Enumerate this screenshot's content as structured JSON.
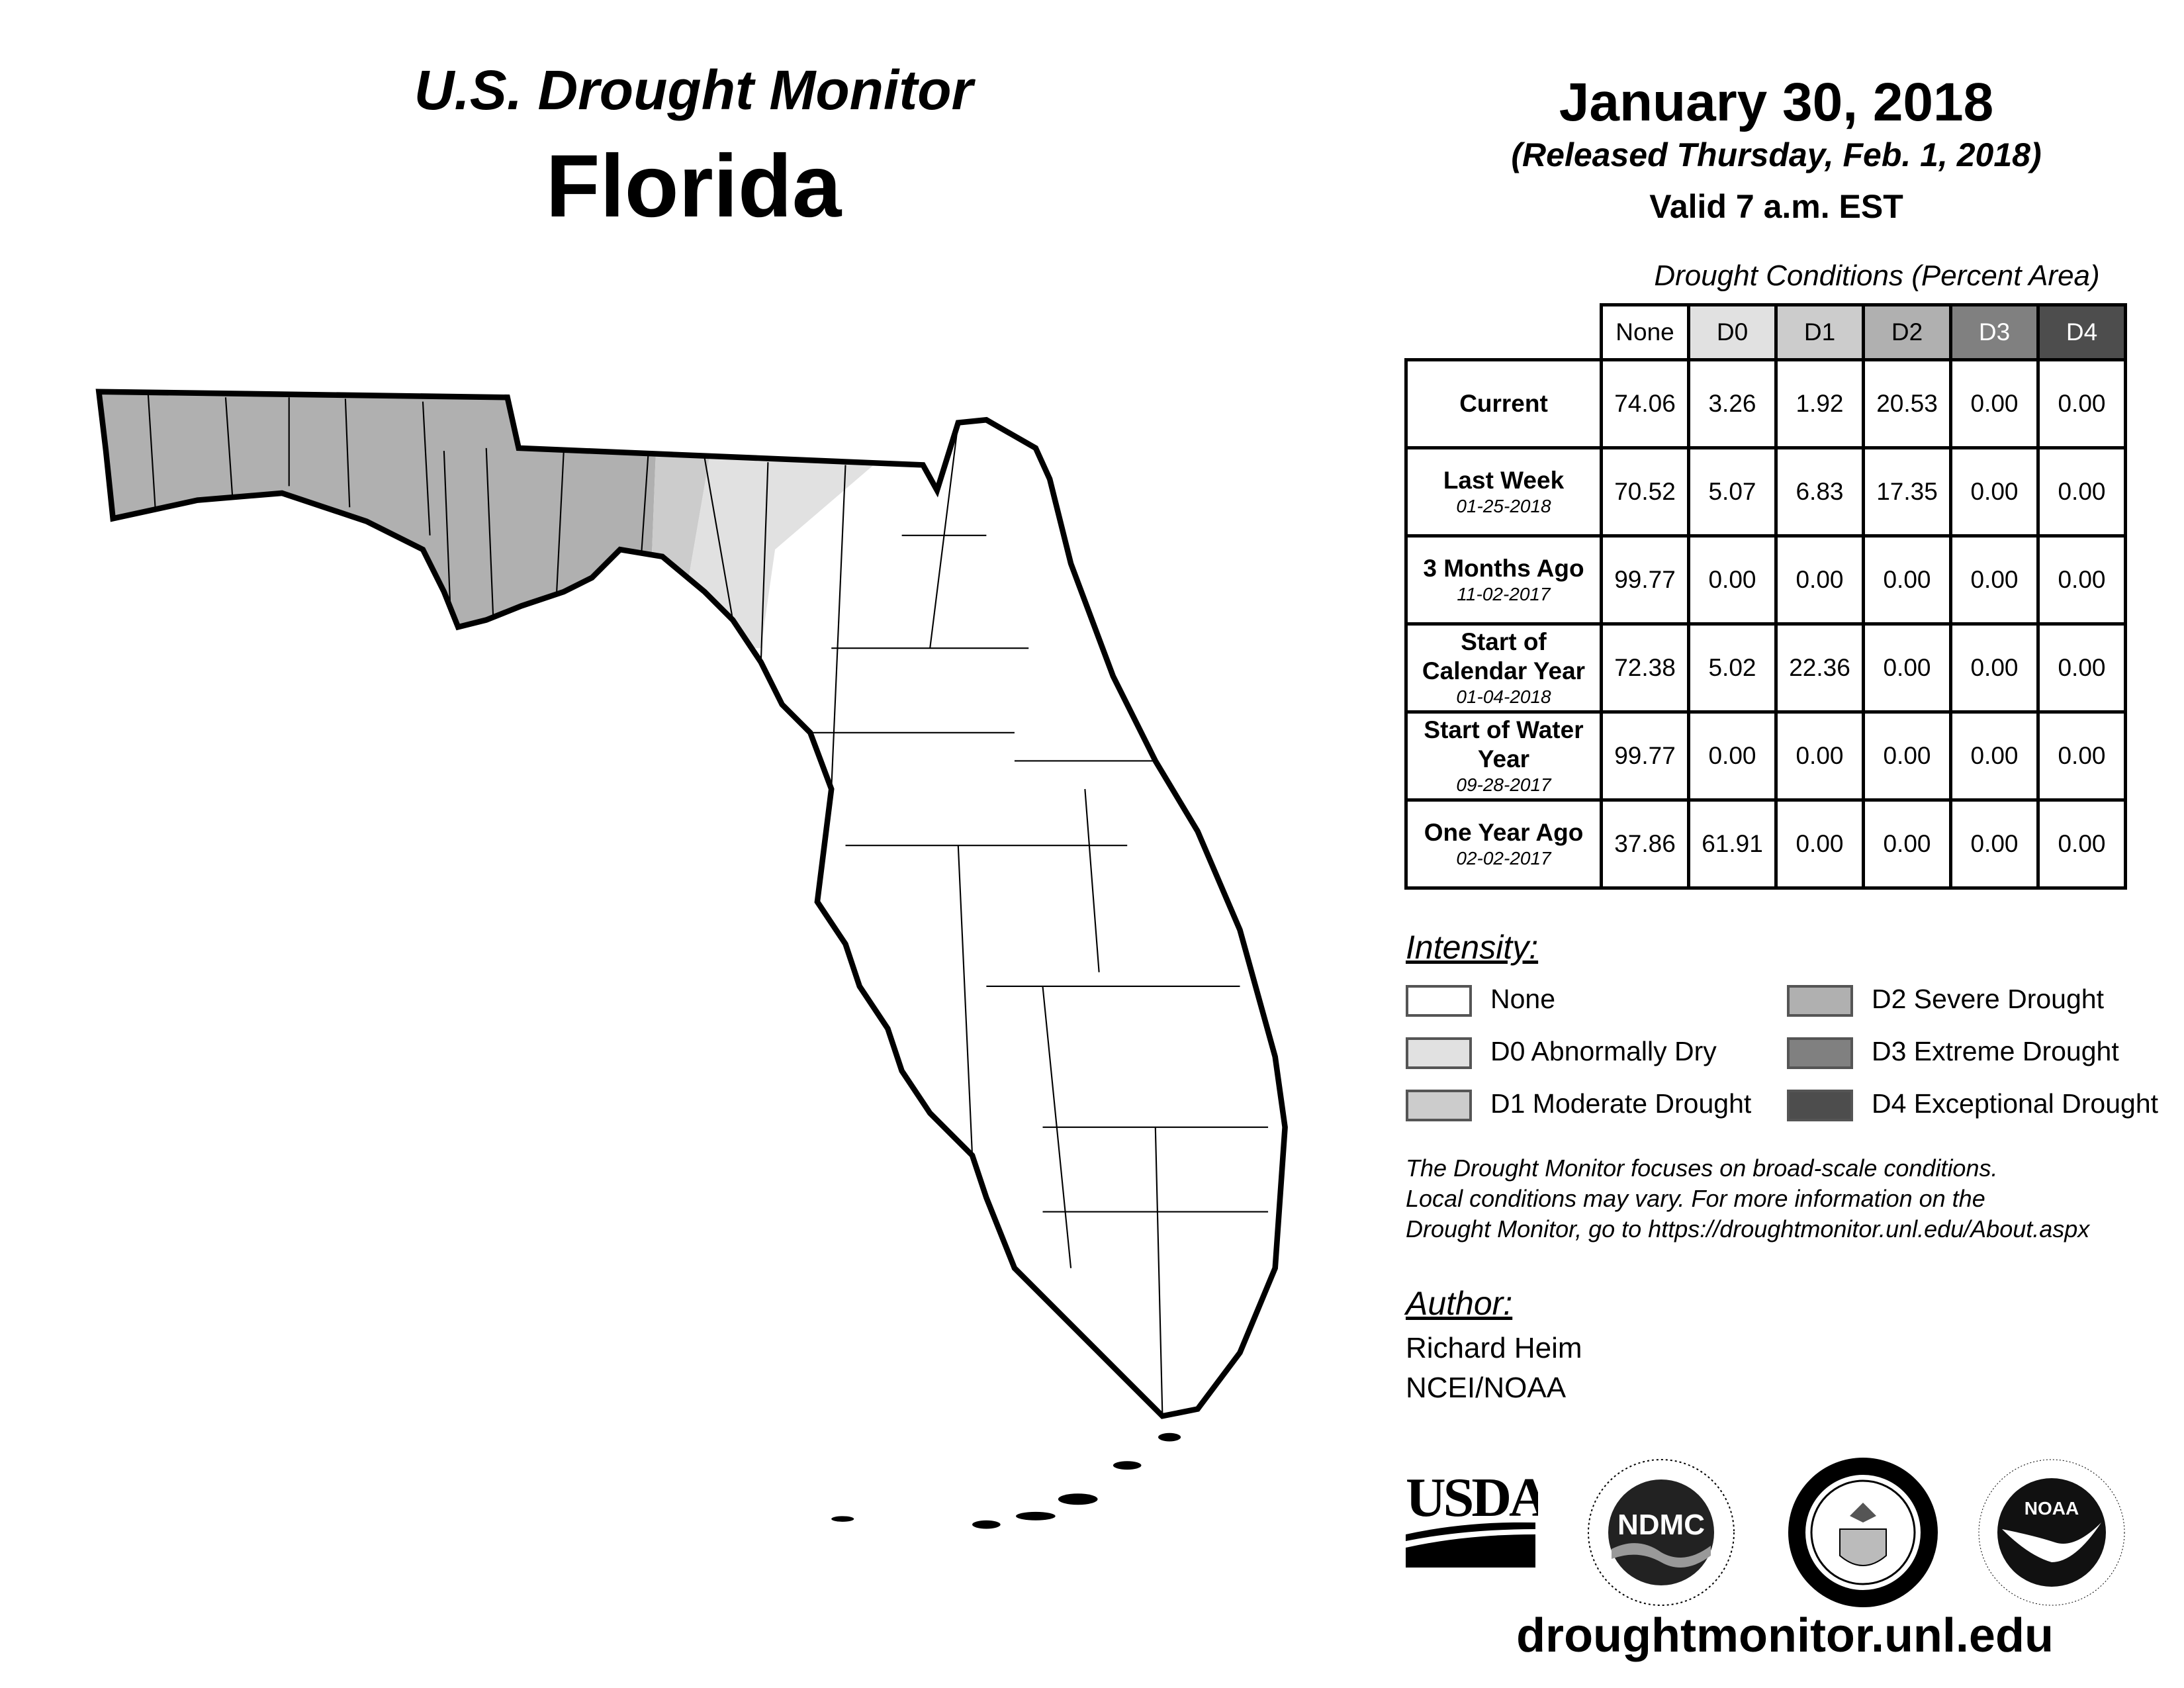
{
  "header": {
    "subtitle": "U.S. Drought Monitor",
    "state": "Florida",
    "date": "January 30, 2018",
    "released": "(Released Thursday, Feb. 1, 2018)",
    "valid": "Valid 7 a.m. EST"
  },
  "table": {
    "title": "Drought Conditions (Percent Area)",
    "columns": [
      "None",
      "D0",
      "D1",
      "D2",
      "D3",
      "D4"
    ],
    "column_colors": [
      "#ffffff",
      "#e1e1e1",
      "#cccccc",
      "#b0b0b0",
      "#808080",
      "#4d4d4d"
    ],
    "rows": [
      {
        "label": "Current",
        "date": "",
        "values": [
          "74.06",
          "3.26",
          "1.92",
          "20.53",
          "0.00",
          "0.00"
        ]
      },
      {
        "label": "Last Week",
        "date": "01-25-2018",
        "values": [
          "70.52",
          "5.07",
          "6.83",
          "17.35",
          "0.00",
          "0.00"
        ]
      },
      {
        "label": "3 Months Ago",
        "date": "11-02-2017",
        "values": [
          "99.77",
          "0.00",
          "0.00",
          "0.00",
          "0.00",
          "0.00"
        ]
      },
      {
        "label": "Start of Calendar Year",
        "date": "01-04-2018",
        "values": [
          "72.38",
          "5.02",
          "22.36",
          "0.00",
          "0.00",
          "0.00"
        ]
      },
      {
        "label": "Start of Water Year",
        "date": "09-28-2017",
        "values": [
          "99.77",
          "0.00",
          "0.00",
          "0.00",
          "0.00",
          "0.00"
        ]
      },
      {
        "label": "One Year Ago",
        "date": "02-02-2017",
        "values": [
          "37.86",
          "61.91",
          "0.00",
          "0.00",
          "0.00",
          "0.00"
        ]
      }
    ]
  },
  "legend": {
    "title": "Intensity:",
    "items": [
      {
        "label": "None",
        "color": "#ffffff"
      },
      {
        "label": "D0 Abnormally Dry",
        "color": "#e1e1e1"
      },
      {
        "label": "D1 Moderate Drought",
        "color": "#cccccc"
      },
      {
        "label": "D2 Severe Drought",
        "color": "#b0b0b0"
      },
      {
        "label": "D3 Extreme Drought",
        "color": "#808080"
      },
      {
        "label": "D4 Exceptional Drought",
        "color": "#4d4d4d"
      }
    ]
  },
  "note": {
    "lines": [
      "The Drought Monitor focuses on broad-scale conditions.",
      "Local conditions may vary. For more information on the",
      "Drought Monitor, go to https://droughtmonitor.unl.edu/About.aspx"
    ]
  },
  "author": {
    "title": "Author:",
    "name": "Richard Heim",
    "org": "NCEI/NOAA"
  },
  "logos": {
    "usda": "USDA",
    "ndmc": "NDMC",
    "ndmc_ring": "NATIONAL DROUGHT MITIGATION CENTER · UNIVERSITY OF NEBRASKA",
    "doc_ring": "DEPARTMENT OF COMMERCE · UNITED STATES OF AMERICA",
    "noaa": "NOAA",
    "noaa_ring": "NATIONAL OCEANIC AND ATMOSPHERIC ADMINISTRATION · U.S. DEPARTMENT OF COMMERCE"
  },
  "footer": {
    "url": "droughtmonitor.unl.edu"
  }
}
